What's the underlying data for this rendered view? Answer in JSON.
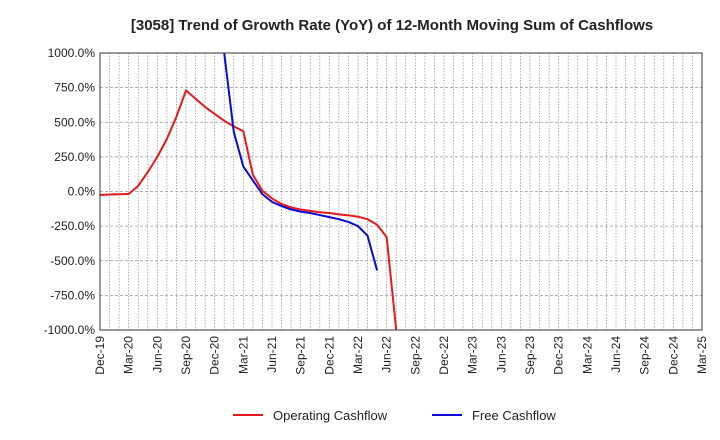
{
  "chart_data": {
    "type": "line",
    "title": "[3058]  Trend of Growth Rate (YoY) of 12-Month Moving Sum of Cashflows",
    "xlabel": "",
    "ylabel": "",
    "x_ticks": [
      "Dec-19",
      "Mar-20",
      "Jun-20",
      "Sep-20",
      "Dec-20",
      "Mar-21",
      "Jun-21",
      "Sep-21",
      "Dec-21",
      "Mar-22",
      "Jun-22",
      "Sep-22",
      "Dec-22",
      "Mar-23",
      "Jun-23",
      "Sep-23",
      "Dec-23",
      "Mar-24",
      "Jun-24",
      "Sep-24",
      "Dec-24",
      "Mar-25"
    ],
    "y_ticks": [
      1000,
      750,
      500,
      250,
      0,
      -250,
      -500,
      -750,
      -1000
    ],
    "y_tick_labels": [
      "1000.0%",
      "750.0%",
      "500.0%",
      "250.0%",
      "0.0%",
      "-250.0%",
      "-500.0%",
      "-750.0%",
      "-1000.0%"
    ],
    "ylim": [
      -1000,
      1000
    ],
    "grid": true,
    "legend_position": "bottom",
    "colors": {
      "operating": "#e31a1c",
      "free": "#0a0ad6"
    },
    "series": [
      {
        "name": "Operating Cashflow",
        "color": "#e31a1c",
        "points": [
          [
            "Dec-19",
            -25
          ],
          [
            "Jan-20",
            -22
          ],
          [
            "Feb-20",
            -20
          ],
          [
            "Mar-20",
            -18
          ],
          [
            "Apr-20",
            40
          ],
          [
            "May-20",
            140
          ],
          [
            "Jun-20",
            250
          ],
          [
            "Jul-20",
            380
          ],
          [
            "Aug-20",
            540
          ],
          [
            "Sep-20",
            730
          ],
          [
            "Oct-20",
            670
          ],
          [
            "Nov-20",
            610
          ],
          [
            "Dec-20",
            560
          ],
          [
            "Jan-21",
            510
          ],
          [
            "Feb-21",
            470
          ],
          [
            "Mar-21",
            435
          ],
          [
            "Apr-21",
            120
          ],
          [
            "May-21",
            5
          ],
          [
            "Jun-21",
            -50
          ],
          [
            "Jul-21",
            -90
          ],
          [
            "Aug-21",
            -115
          ],
          [
            "Sep-21",
            -130
          ],
          [
            "Oct-21",
            -140
          ],
          [
            "Nov-21",
            -150
          ],
          [
            "Dec-21",
            -155
          ],
          [
            "Jan-22",
            -165
          ],
          [
            "Feb-22",
            -172
          ],
          [
            "Mar-22",
            -182
          ],
          [
            "Apr-22",
            -200
          ],
          [
            "May-22",
            -240
          ],
          [
            "Jun-22",
            -330
          ],
          [
            "Jul-22",
            -1000
          ]
        ]
      },
      {
        "name": "Free Cashflow",
        "color": "#0a0ad6",
        "points": [
          [
            "Jan-21",
            1000
          ],
          [
            "Feb-21",
            430
          ],
          [
            "Mar-21",
            180
          ],
          [
            "Apr-21",
            80
          ],
          [
            "May-21",
            -20
          ],
          [
            "Jun-21",
            -75
          ],
          [
            "Jul-21",
            -105
          ],
          [
            "Aug-21",
            -130
          ],
          [
            "Sep-21",
            -145
          ],
          [
            "Oct-21",
            -155
          ],
          [
            "Nov-21",
            -170
          ],
          [
            "Dec-21",
            -185
          ],
          [
            "Jan-22",
            -200
          ],
          [
            "Feb-22",
            -220
          ],
          [
            "Mar-22",
            -250
          ],
          [
            "Apr-22",
            -320
          ],
          [
            "May-22",
            -570
          ]
        ]
      }
    ]
  }
}
